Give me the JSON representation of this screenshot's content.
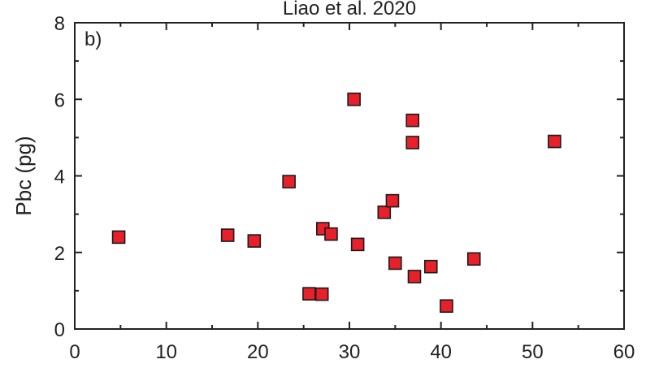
{
  "chart_data": {
    "type": "scatter",
    "title": "Liao et al. 2020",
    "panel_label": "b)",
    "xlabel": "",
    "ylabel": "Pbc (pg)",
    "xlim": [
      0,
      60
    ],
    "ylim": [
      0,
      8
    ],
    "xticks": [
      0,
      10,
      20,
      30,
      40,
      50,
      60
    ],
    "yticks": [
      0,
      2,
      4,
      6,
      8
    ],
    "xtick_labels": [
      "0",
      "10",
      "20",
      "30",
      "40",
      "50",
      "60"
    ],
    "ytick_labels": [
      "0",
      "2",
      "4",
      "6",
      "8"
    ],
    "grid": false,
    "marker_color": "#e8202a",
    "marker_edge_color": "#1a1a1a",
    "series": [
      {
        "points": [
          {
            "x": 4.8,
            "y": 2.4
          },
          {
            "x": 16.7,
            "y": 2.45
          },
          {
            "x": 19.6,
            "y": 2.3
          },
          {
            "x": 23.4,
            "y": 3.85
          },
          {
            "x": 25.6,
            "y": 0.92
          },
          {
            "x": 27.0,
            "y": 0.91
          },
          {
            "x": 27.1,
            "y": 2.62
          },
          {
            "x": 28.0,
            "y": 2.48
          },
          {
            "x": 30.5,
            "y": 6.0
          },
          {
            "x": 30.9,
            "y": 2.21
          },
          {
            "x": 33.8,
            "y": 3.05
          },
          {
            "x": 34.7,
            "y": 3.35
          },
          {
            "x": 35.0,
            "y": 1.72
          },
          {
            "x": 36.9,
            "y": 5.45
          },
          {
            "x": 36.9,
            "y": 4.87
          },
          {
            "x": 37.1,
            "y": 1.37
          },
          {
            "x": 38.9,
            "y": 1.63
          },
          {
            "x": 40.6,
            "y": 0.6
          },
          {
            "x": 43.6,
            "y": 1.83
          },
          {
            "x": 52.4,
            "y": 4.9
          }
        ]
      }
    ]
  }
}
